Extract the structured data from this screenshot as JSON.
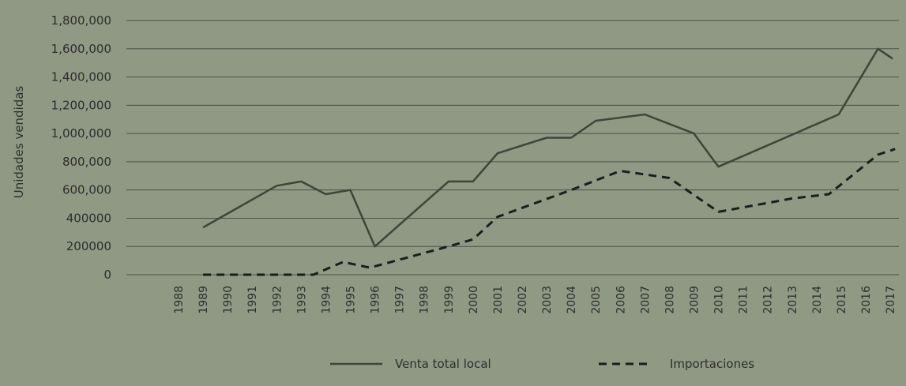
{
  "chart_data": {
    "type": "line",
    "ylabel": "Unidades vendidas",
    "ytick_labels": [
      "0",
      "200000",
      "400000",
      "600,000",
      "800,000",
      "1,000,000",
      "1,200,000",
      "1,400,000",
      "1,600,000",
      "1,800,000"
    ],
    "ytick_values": [
      0,
      200000,
      400000,
      600000,
      800000,
      1000000,
      1200000,
      1400000,
      1600000,
      1800000
    ],
    "ylim": [
      0,
      1800000
    ],
    "categories": [
      "1988",
      "1989",
      "1990",
      "1991",
      "1992",
      "1993",
      "1994",
      "1995",
      "1996",
      "1997",
      "1998",
      "1999",
      "2000",
      "2001",
      "2002",
      "2003",
      "2004",
      "2005",
      "2006",
      "2007",
      "2008",
      "2009",
      "2010",
      "2011",
      "2012",
      "2013",
      "2014",
      "2015",
      "2016",
      "2017"
    ],
    "grid": "horizontal",
    "legend_position": "bottom",
    "series": [
      {
        "name": "Venta total local",
        "style": "solid",
        "points": [
          {
            "x": 1989,
            "y": 335000
          },
          {
            "x": 1992,
            "y": 630000
          },
          {
            "x": 1993,
            "y": 660000
          },
          {
            "x": 1994,
            "y": 570000
          },
          {
            "x": 1995,
            "y": 600000
          },
          {
            "x": 1996,
            "y": 200000
          },
          {
            "x": 1999,
            "y": 660000
          },
          {
            "x": 2000,
            "y": 660000
          },
          {
            "x": 2001,
            "y": 860000
          },
          {
            "x": 2003,
            "y": 970000
          },
          {
            "x": 2004,
            "y": 970000
          },
          {
            "x": 2005,
            "y": 1090000
          },
          {
            "x": 2007,
            "y": 1135000
          },
          {
            "x": 2009,
            "y": 1000000
          },
          {
            "x": 2010,
            "y": 765000
          },
          {
            "x": 2014.9,
            "y": 1135000
          },
          {
            "x": 2016.5,
            "y": 1600000
          },
          {
            "x": 2017.1,
            "y": 1530000
          }
        ]
      },
      {
        "name": "Importaciones",
        "style": "dashed",
        "points": [
          {
            "x": 1989,
            "y": 0
          },
          {
            "x": 1993.5,
            "y": 0
          },
          {
            "x": 1994.7,
            "y": 90000
          },
          {
            "x": 1995.8,
            "y": 50000
          },
          {
            "x": 1999,
            "y": 200000
          },
          {
            "x": 2000,
            "y": 250000
          },
          {
            "x": 2001,
            "y": 410000
          },
          {
            "x": 2004,
            "y": 600000
          },
          {
            "x": 2006,
            "y": 735000
          },
          {
            "x": 2008,
            "y": 685000
          },
          {
            "x": 2010,
            "y": 445000
          },
          {
            "x": 2013,
            "y": 540000
          },
          {
            "x": 2014.5,
            "y": 570000
          },
          {
            "x": 2016.5,
            "y": 850000
          },
          {
            "x": 2017.2,
            "y": 890000
          }
        ]
      }
    ],
    "colors": {
      "background": "#8f9984",
      "line": "#3f4539",
      "grid": "#4a5244",
      "text": "#2e2e2e"
    }
  }
}
